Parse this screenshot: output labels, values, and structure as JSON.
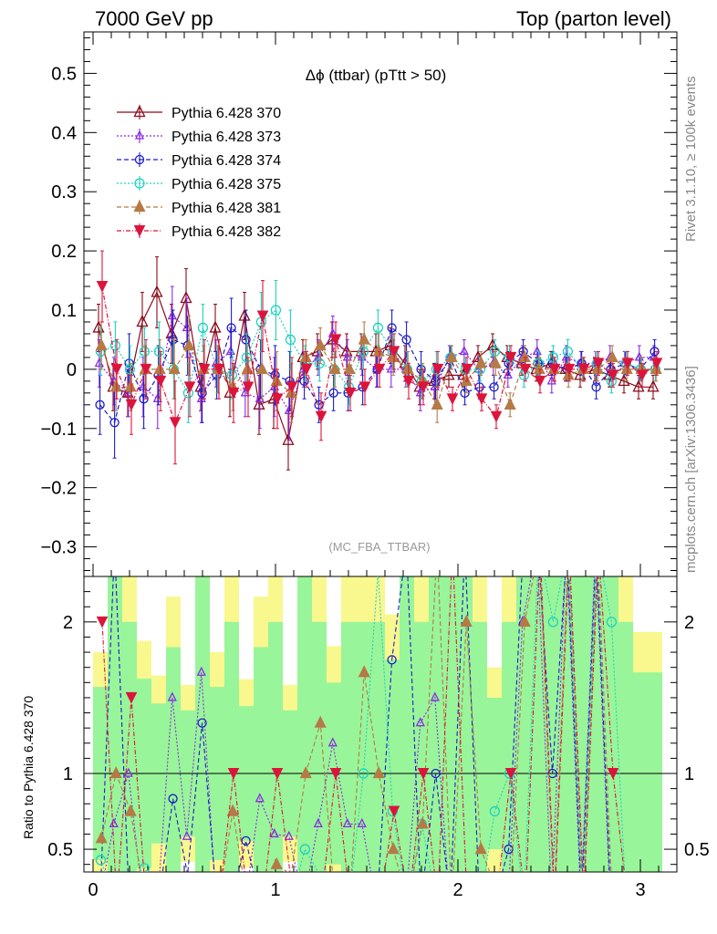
{
  "header": {
    "left": "7000 GeV pp",
    "right": "Top (parton level)"
  },
  "side": {
    "rivet": "Rivet 3.1.10, ≥ 100k events",
    "mcplots": "mcplots.cern.ch [arXiv:1306.3436]"
  },
  "chart_data": {
    "type": "line",
    "title": "Δϕ (ttbar) (pTtt > 50)",
    "analysis_tag": "(MC_FBA_TTBAR)",
    "ratio_ylabel": "Ratio to Pythia 6.428 370",
    "xlim": [
      -0.05,
      3.2
    ],
    "ylim": [
      -0.35,
      0.57
    ],
    "ratio_ylim": [
      0.35,
      2.3
    ],
    "x_ticks": [
      0,
      1,
      2,
      3
    ],
    "y_ticks": [
      0.5,
      0.4,
      0.3,
      0.2,
      0.1,
      0,
      -0.1,
      -0.2,
      -0.3
    ],
    "ratio_ticks": [
      2,
      1,
      0.5
    ],
    "legend_position": "top-left",
    "x": [
      0.04,
      0.12,
      0.2,
      0.28,
      0.36,
      0.44,
      0.52,
      0.6,
      0.68,
      0.76,
      0.84,
      0.92,
      1.0,
      1.08,
      1.16,
      1.24,
      1.32,
      1.4,
      1.48,
      1.56,
      1.64,
      1.72,
      1.8,
      1.88,
      1.96,
      2.04,
      2.12,
      2.2,
      2.28,
      2.36,
      2.44,
      2.52,
      2.6,
      2.68,
      2.76,
      2.84,
      2.92,
      3.0,
      3.08
    ],
    "series": [
      {
        "name": "Pythia 6.428 370",
        "color": "#8b0a1a",
        "marker": "triangle-open",
        "dash": "",
        "values": [
          0.07,
          -0.03,
          -0.04,
          0.08,
          0.13,
          0.06,
          0.12,
          -0.03,
          0.07,
          -0.04,
          0.09,
          -0.06,
          -0.05,
          -0.12,
          0.02,
          0.03,
          0.05,
          0.03,
          0.03,
          0.03,
          0.04,
          0.01,
          -0.03,
          -0.02,
          -0.01,
          -0.01,
          0.02,
          0.04,
          0.02,
          0.01,
          0.0,
          0.01,
          0.0,
          -0.01,
          0.0,
          -0.01,
          -0.02,
          -0.03,
          -0.03
        ],
        "errors": [
          0.04,
          0.04,
          0.04,
          0.05,
          0.06,
          0.05,
          0.05,
          0.04,
          0.04,
          0.04,
          0.04,
          0.05,
          0.05,
          0.05,
          0.03,
          0.03,
          0.03,
          0.03,
          0.03,
          0.03,
          0.03,
          0.03,
          0.03,
          0.03,
          0.02,
          0.02,
          0.02,
          0.02,
          0.02,
          0.02,
          0.02,
          0.02,
          0.02,
          0.02,
          0.02,
          0.02,
          0.02,
          0.02,
          0.02
        ]
      },
      {
        "name": "Pythia 6.428 373",
        "color": "#8a2be2",
        "marker": "triangle-open-small",
        "dash": "2,2",
        "values": [
          0.01,
          -0.02,
          -0.04,
          -0.03,
          -0.05,
          0.09,
          0.07,
          -0.05,
          0.01,
          0.03,
          -0.04,
          -0.05,
          -0.03,
          -0.07,
          0.0,
          0.02,
          0.06,
          0.02,
          0.02,
          0.0,
          0.0,
          0.0,
          -0.04,
          -0.03,
          0.02,
          0.03,
          0.0,
          0.01,
          -0.01,
          0.02,
          0.03,
          -0.02,
          0.02,
          0.01,
          0.01,
          0.02,
          0.01,
          0.02,
          0.02
        ],
        "errors": [
          0.04,
          0.04,
          0.04,
          0.05,
          0.05,
          0.05,
          0.05,
          0.04,
          0.04,
          0.04,
          0.04,
          0.05,
          0.05,
          0.05,
          0.03,
          0.03,
          0.03,
          0.03,
          0.03,
          0.03,
          0.03,
          0.03,
          0.03,
          0.03,
          0.02,
          0.02,
          0.02,
          0.02,
          0.02,
          0.02,
          0.02,
          0.02,
          0.02,
          0.02,
          0.02,
          0.02,
          0.02,
          0.02,
          0.02
        ]
      },
      {
        "name": "Pythia 6.428 374",
        "color": "#1c1cc8",
        "marker": "circle-open",
        "dash": "5,3",
        "values": [
          -0.06,
          -0.09,
          0.01,
          -0.05,
          -0.01,
          0.05,
          0.04,
          -0.04,
          -0.01,
          0.07,
          0.05,
          0.0,
          -0.01,
          -0.02,
          -0.02,
          -0.06,
          -0.04,
          -0.04,
          -0.03,
          0.0,
          0.07,
          0.05,
          0.0,
          -0.02,
          0.02,
          -0.04,
          -0.03,
          -0.03,
          0.01,
          0.03,
          0.01,
          0.01,
          0.0,
          0.01,
          -0.03,
          0.0,
          0.01,
          0.0,
          0.03
        ],
        "errors": [
          0.05,
          0.06,
          0.05,
          0.05,
          0.05,
          0.05,
          0.05,
          0.05,
          0.04,
          0.05,
          0.05,
          0.05,
          0.05,
          0.05,
          0.03,
          0.03,
          0.03,
          0.03,
          0.03,
          0.03,
          0.03,
          0.03,
          0.03,
          0.03,
          0.02,
          0.02,
          0.02,
          0.02,
          0.02,
          0.02,
          0.02,
          0.02,
          0.02,
          0.02,
          0.02,
          0.02,
          0.02,
          0.02,
          0.02
        ]
      },
      {
        "name": "Pythia 6.428 375",
        "color": "#1ed2c0",
        "marker": "circle-open-large",
        "dash": "2,2",
        "values": [
          0.03,
          0.04,
          0.0,
          0.03,
          0.03,
          0.0,
          -0.04,
          0.07,
          0.0,
          -0.01,
          0.02,
          0.08,
          0.1,
          0.05,
          0.01,
          0.01,
          0.0,
          -0.03,
          0.03,
          0.07,
          0.03,
          0.0,
          -0.02,
          0.0,
          0.02,
          0.0,
          0.0,
          0.03,
          0.02,
          -0.01,
          0.01,
          0.02,
          0.03,
          0.0,
          0.01,
          -0.02,
          0.01,
          0.0,
          0.0
        ],
        "errors": [
          0.04,
          0.04,
          0.04,
          0.04,
          0.05,
          0.05,
          0.05,
          0.04,
          0.04,
          0.04,
          0.04,
          0.05,
          0.05,
          0.05,
          0.03,
          0.03,
          0.03,
          0.03,
          0.03,
          0.03,
          0.03,
          0.03,
          0.03,
          0.03,
          0.02,
          0.02,
          0.02,
          0.02,
          0.02,
          0.02,
          0.02,
          0.02,
          0.02,
          0.02,
          0.02,
          0.02,
          0.02,
          0.02,
          0.02
        ]
      },
      {
        "name": "Pythia 6.428 381",
        "color": "#b57a45",
        "marker": "triangle-filled",
        "dash": "5,3",
        "values": [
          0.04,
          -0.03,
          -0.03,
          0.0,
          0.0,
          0.0,
          0.04,
          0.0,
          0.0,
          -0.03,
          0.0,
          0.0,
          -0.02,
          -0.04,
          0.02,
          0.04,
          0.0,
          0.0,
          0.05,
          0.03,
          0.02,
          0.0,
          -0.02,
          -0.06,
          0.02,
          -0.02,
          0.01,
          0.01,
          -0.06,
          0.02,
          0.0,
          0.0,
          -0.01,
          0.0,
          0.0,
          0.02,
          0.0,
          0.0,
          0.0
        ],
        "errors": [
          0.04,
          0.04,
          0.04,
          0.04,
          0.05,
          0.05,
          0.05,
          0.04,
          0.04,
          0.04,
          0.04,
          0.05,
          0.05,
          0.05,
          0.03,
          0.03,
          0.03,
          0.03,
          0.03,
          0.03,
          0.03,
          0.03,
          0.03,
          0.03,
          0.02,
          0.02,
          0.02,
          0.02,
          0.02,
          0.02,
          0.02,
          0.02,
          0.02,
          0.02,
          0.02,
          0.02,
          0.02,
          0.02,
          0.02
        ]
      },
      {
        "name": "Pythia 6.428 382",
        "color": "#dc143c",
        "marker": "triangle-down-filled",
        "dash": "5,2,1,2",
        "values": [
          0.14,
          0.0,
          -0.06,
          0.0,
          -0.02,
          -0.09,
          -0.03,
          0.0,
          0.0,
          -0.04,
          -0.03,
          0.09,
          -0.05,
          -0.03,
          0.0,
          -0.08,
          0.05,
          -0.04,
          -0.03,
          0.0,
          0.03,
          -0.02,
          -0.03,
          0.0,
          -0.05,
          0.0,
          -0.05,
          -0.08,
          0.02,
          0.0,
          -0.02,
          0.0,
          0.0,
          0.0,
          0.01,
          -0.01,
          0.01,
          -0.01,
          0.01
        ],
        "errors": [
          0.06,
          0.05,
          0.05,
          0.05,
          0.05,
          0.07,
          0.05,
          0.05,
          0.05,
          0.05,
          0.05,
          0.06,
          0.05,
          0.05,
          0.03,
          0.04,
          0.03,
          0.03,
          0.03,
          0.03,
          0.03,
          0.03,
          0.03,
          0.03,
          0.02,
          0.02,
          0.02,
          0.02,
          0.02,
          0.02,
          0.02,
          0.02,
          0.02,
          0.02,
          0.02,
          0.02,
          0.02,
          0.02,
          0.02
        ]
      }
    ],
    "ratio_band_colors": {
      "inner": "#99f599",
      "outer": "#f8f88e"
    }
  }
}
